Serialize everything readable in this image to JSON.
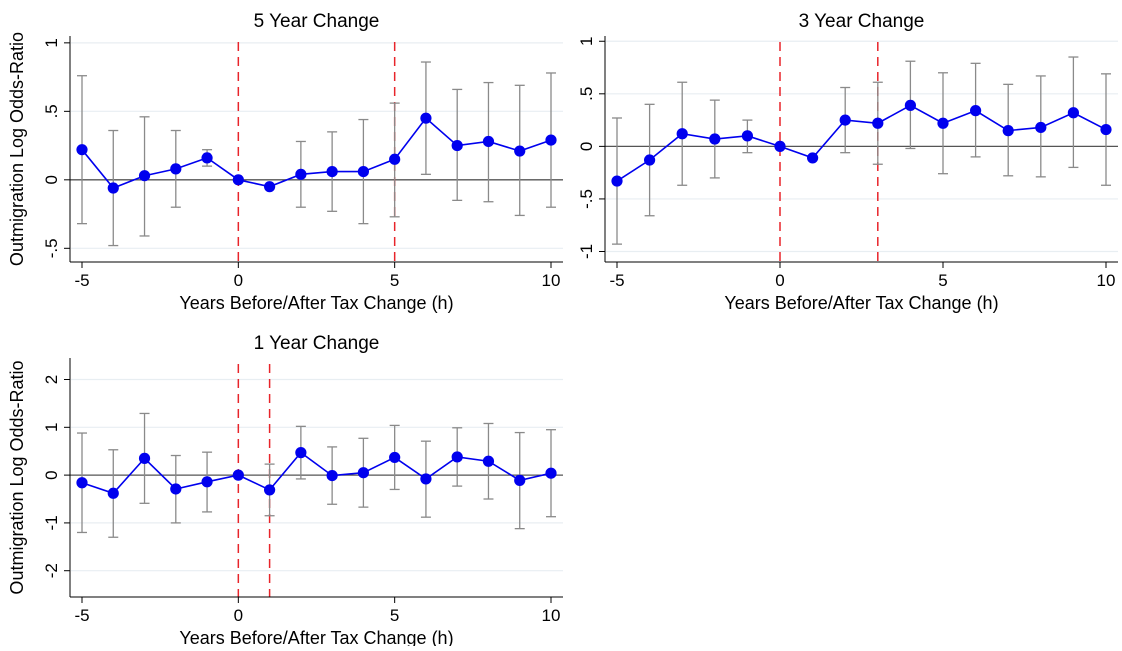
{
  "chart_data": [
    {
      "type": "line",
      "title": "5 Year Change",
      "xlabel": "Years Before/After Tax Change (h)",
      "ylabel": "Outmigration Log Odds-Ratio",
      "xlim": [
        -5,
        10
      ],
      "ylim": [
        -0.6,
        1.05
      ],
      "xticks": [
        -5,
        0,
        5,
        10
      ],
      "xtick_labels": [
        "-5",
        "0",
        "5",
        "10"
      ],
      "yticks": [
        -0.5,
        0,
        0.5,
        1
      ],
      "ytick_labels": [
        "-.5",
        "0",
        ".5",
        "1"
      ],
      "grid": true,
      "event_lines": [
        0,
        5
      ],
      "x": [
        -5,
        -4,
        -3,
        -2,
        -1,
        0,
        1,
        2,
        3,
        4,
        5,
        6,
        7,
        8,
        9,
        10
      ],
      "values": [
        0.22,
        -0.06,
        0.03,
        0.08,
        0.16,
        0.0,
        -0.05,
        0.04,
        0.06,
        0.06,
        0.15,
        0.45,
        0.25,
        0.28,
        0.21,
        0.29
      ],
      "ci_low": [
        -0.32,
        -0.48,
        -0.41,
        -0.2,
        0.1,
        0.0,
        -0.05,
        -0.2,
        -0.23,
        -0.32,
        -0.27,
        0.04,
        -0.15,
        -0.16,
        -0.26,
        -0.2
      ],
      "ci_high": [
        0.76,
        0.36,
        0.46,
        0.36,
        0.22,
        0.0,
        -0.05,
        0.28,
        0.35,
        0.44,
        0.56,
        0.86,
        0.66,
        0.71,
        0.69,
        0.78
      ]
    },
    {
      "type": "line",
      "title": "3 Year Change",
      "xlabel": "Years Before/After Tax Change (h)",
      "ylabel": "",
      "xlim": [
        -5,
        10
      ],
      "ylim": [
        -1.1,
        1.05
      ],
      "xticks": [
        -5,
        0,
        5,
        10
      ],
      "xtick_labels": [
        "-5",
        "0",
        "5",
        "10"
      ],
      "yticks": [
        -1,
        -0.5,
        0,
        0.5,
        1
      ],
      "ytick_labels": [
        "-1",
        "-.5",
        "0",
        ".5",
        "1"
      ],
      "grid": true,
      "event_lines": [
        0,
        3
      ],
      "x": [
        -5,
        -4,
        -3,
        -2,
        -1,
        0,
        1,
        2,
        3,
        4,
        5,
        6,
        7,
        8,
        9,
        10
      ],
      "values": [
        -0.33,
        -0.13,
        0.12,
        0.07,
        0.1,
        0.0,
        -0.11,
        0.25,
        0.22,
        0.39,
        0.22,
        0.34,
        0.15,
        0.18,
        0.32,
        0.16
      ],
      "ci_low": [
        -0.93,
        -0.66,
        -0.37,
        -0.3,
        -0.06,
        0.0,
        -0.11,
        -0.06,
        -0.17,
        -0.02,
        -0.26,
        -0.1,
        -0.28,
        -0.29,
        -0.2,
        -0.37
      ],
      "ci_high": [
        0.27,
        0.4,
        0.61,
        0.44,
        0.25,
        0.0,
        -0.11,
        0.56,
        0.61,
        0.81,
        0.7,
        0.79,
        0.59,
        0.67,
        0.85,
        0.69
      ]
    },
    {
      "type": "line",
      "title": "1 Year Change",
      "xlabel": "Years Before/After Tax Change (h)",
      "ylabel": "Outmigration Log Odds-Ratio",
      "xlim": [
        -5,
        10
      ],
      "ylim": [
        -2.55,
        2.45
      ],
      "xticks": [
        -5,
        0,
        5,
        10
      ],
      "xtick_labels": [
        "-5",
        "0",
        "5",
        "10"
      ],
      "yticks": [
        -2,
        -1,
        0,
        1,
        2
      ],
      "ytick_labels": [
        "-2",
        "-1",
        "0",
        "1",
        "2"
      ],
      "grid": true,
      "event_lines": [
        0,
        1
      ],
      "x": [
        -5,
        -4,
        -3,
        -2,
        -1,
        0,
        1,
        2,
        3,
        4,
        5,
        6,
        7,
        8,
        9,
        10
      ],
      "values": [
        -0.16,
        -0.38,
        0.35,
        -0.29,
        -0.14,
        0.0,
        -0.31,
        0.47,
        -0.01,
        0.05,
        0.37,
        -0.08,
        0.38,
        0.29,
        -0.11,
        0.04
      ],
      "ci_low": [
        -1.2,
        -1.3,
        -0.59,
        -1.0,
        -0.77,
        0.0,
        -0.85,
        -0.08,
        -0.61,
        -0.67,
        -0.3,
        -0.88,
        -0.23,
        -0.5,
        -1.12,
        -0.87
      ],
      "ci_high": [
        0.88,
        0.53,
        1.29,
        0.41,
        0.48,
        0.0,
        0.23,
        1.02,
        0.59,
        0.77,
        1.04,
        0.71,
        0.99,
        1.08,
        0.89,
        0.95
      ]
    }
  ]
}
